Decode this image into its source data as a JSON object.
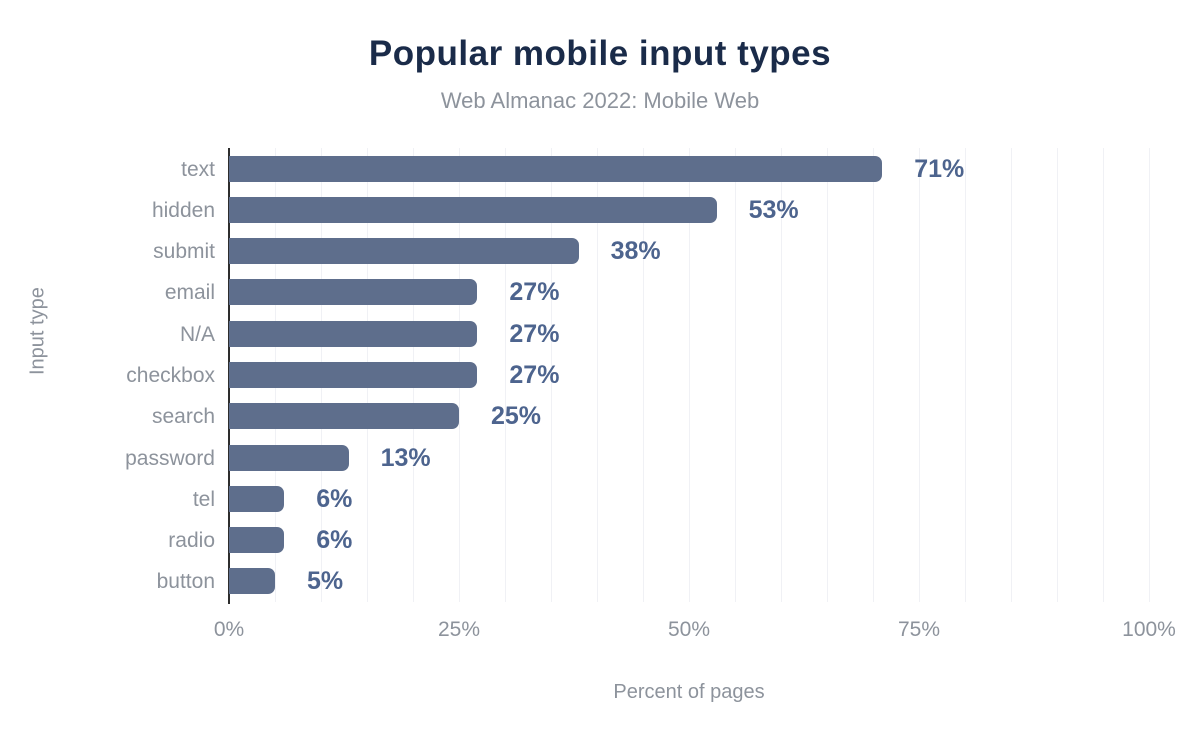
{
  "title": "Popular mobile input types",
  "subtitle": "Web Almanac 2022: Mobile Web",
  "y_axis_title": "Input type",
  "x_axis_title": "Percent of pages",
  "x_ticks": [
    "0%",
    "25%",
    "50%",
    "75%",
    "100%"
  ],
  "colors": {
    "title": "#1a2b49",
    "subtitle": "#8d939c",
    "bar": "#5e6e8c",
    "value_label": "#4d648e",
    "axis_line": "#2d2d2d",
    "gridline": "#f0f1f5",
    "tick_label": "#8d939c"
  },
  "chart_data": {
    "type": "bar",
    "orientation": "horizontal",
    "title": "Popular mobile input types",
    "subtitle": "Web Almanac 2022: Mobile Web",
    "xlabel": "Percent of pages",
    "ylabel": "Input type",
    "categories": [
      "text",
      "hidden",
      "submit",
      "email",
      "N/A",
      "checkbox",
      "search",
      "password",
      "tel",
      "radio",
      "button"
    ],
    "values": [
      71,
      53,
      38,
      27,
      27,
      27,
      25,
      13,
      6,
      6,
      5
    ],
    "value_labels": [
      "71%",
      "53%",
      "38%",
      "27%",
      "27%",
      "27%",
      "25%",
      "13%",
      "6%",
      "6%",
      "5%"
    ],
    "xlim": [
      0,
      100
    ],
    "x_tick_step": 25,
    "grid": "vertical lines every 5%",
    "legend": "none"
  }
}
